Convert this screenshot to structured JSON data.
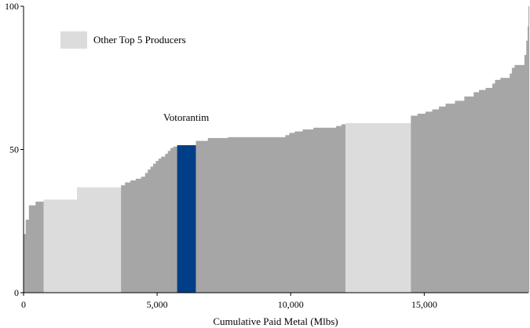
{
  "chart_data": {
    "type": "bar",
    "subtype": "cost-curve-variable-width",
    "title": "",
    "xlabel": "Cumulative Paid Metal (Mlbs)",
    "ylabel": "",
    "xlim": [
      0,
      18900
    ],
    "ylim": [
      0,
      100
    ],
    "x_ticks": [
      0,
      5000,
      10000,
      15000
    ],
    "x_tick_labels": [
      "0",
      "5,000",
      "10,000",
      "15,000"
    ],
    "y_ticks": [
      0,
      50,
      100
    ],
    "y_tick_labels": [
      "0",
      "50",
      "100"
    ],
    "grid": false,
    "legend": {
      "placement": "top-left",
      "entries": [
        {
          "label": "Other Top 5 Producers",
          "color": "#dcdcdc"
        }
      ]
    },
    "annotations": [
      {
        "text": "Votorantim",
        "x": 5700,
        "y": 60
      }
    ],
    "colors": {
      "other": "#a6a6a6",
      "top5": "#dcdcdc",
      "highlight": "#003f87"
    },
    "series": [
      {
        "group": "other",
        "bars": [
          [
            0,
            80,
            20.5
          ],
          [
            80,
            200,
            25.5
          ],
          [
            200,
            450,
            30.5
          ],
          [
            450,
            750,
            31.8
          ]
        ]
      },
      {
        "group": "top5",
        "bars": [
          [
            750,
            2000,
            32.5
          ]
        ]
      },
      {
        "group": "top5",
        "bars": [
          [
            2000,
            3650,
            36.8
          ]
        ]
      },
      {
        "group": "other",
        "bars": [
          [
            3650,
            3800,
            37.5
          ],
          [
            3800,
            4000,
            38.5
          ],
          [
            4000,
            4200,
            39.2
          ],
          [
            4200,
            4400,
            39.8
          ],
          [
            4400,
            4550,
            40.5
          ],
          [
            4550,
            4650,
            41.8
          ],
          [
            4650,
            4750,
            43.0
          ],
          [
            4750,
            4850,
            44.0
          ],
          [
            4850,
            4950,
            45.0
          ],
          [
            4950,
            5050,
            46.0
          ],
          [
            5050,
            5150,
            46.8
          ],
          [
            5150,
            5300,
            47.5
          ],
          [
            5300,
            5400,
            48.5
          ],
          [
            5400,
            5500,
            49.5
          ],
          [
            5500,
            5600,
            50.5
          ],
          [
            5600,
            5750,
            51.0
          ]
        ]
      },
      {
        "group": "highlight",
        "name": "Votorantim",
        "bars": [
          [
            5750,
            6450,
            51.5
          ]
        ]
      },
      {
        "group": "other",
        "bars": [
          [
            6450,
            6900,
            53.0
          ],
          [
            6900,
            7650,
            54.0
          ],
          [
            7650,
            9800,
            54.3
          ],
          [
            9800,
            9950,
            55.0
          ],
          [
            9950,
            10150,
            55.8
          ],
          [
            10150,
            10450,
            56.3
          ],
          [
            10450,
            10850,
            57.0
          ],
          [
            10850,
            11700,
            57.6
          ],
          [
            11700,
            11900,
            58.2
          ],
          [
            11900,
            12050,
            58.8
          ]
        ]
      },
      {
        "group": "top5",
        "bars": [
          [
            12050,
            14500,
            59.2
          ]
        ]
      },
      {
        "group": "other",
        "bars": [
          [
            14500,
            14750,
            61.8
          ],
          [
            14750,
            15050,
            62.5
          ],
          [
            15050,
            15300,
            63.2
          ],
          [
            15300,
            15550,
            64.0
          ],
          [
            15550,
            15800,
            65.0
          ],
          [
            15800,
            16150,
            66.0
          ],
          [
            16150,
            16500,
            67.0
          ],
          [
            16500,
            16850,
            68.5
          ],
          [
            16850,
            17050,
            70.0
          ],
          [
            17050,
            17300,
            70.8
          ],
          [
            17300,
            17550,
            71.5
          ],
          [
            17550,
            17650,
            73.0
          ],
          [
            17650,
            17850,
            74.3
          ],
          [
            17850,
            18200,
            75.0
          ],
          [
            18200,
            18280,
            76.5
          ],
          [
            18280,
            18380,
            78.5
          ],
          [
            18380,
            18750,
            79.5
          ],
          [
            18750,
            18820,
            83.0
          ],
          [
            18820,
            18870,
            88.0
          ],
          [
            18870,
            18900,
            93.0
          ],
          [
            18900,
            18920,
            100
          ]
        ]
      }
    ]
  }
}
